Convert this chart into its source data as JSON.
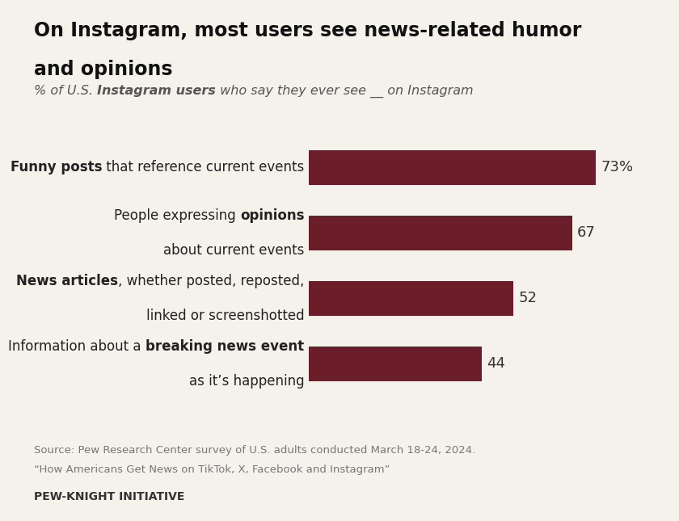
{
  "title_line1": "On Instagram, most users see news-related humor",
  "title_line2": "and opinions",
  "values": [
    73,
    67,
    52,
    44
  ],
  "value_labels": [
    "73%",
    "67",
    "52",
    "44"
  ],
  "bar_color": "#6b1e2a",
  "background_color": "#f5f2eb",
  "source_line1": "Source: Pew Research Center survey of U.S. adults conducted March 18-24, 2024.",
  "source_line2": "“How Americans Get News on TikTok, X, Facebook and Instagram”",
  "footer": "PEW-KNIGHT INITIATIVE",
  "bar_height": 0.52,
  "xlim_max": 82,
  "label_fs": 12,
  "value_fs": 13,
  "title_fs": 17,
  "subtitle_fs": 11.5,
  "source_fs": 9.5,
  "footer_fs": 10
}
